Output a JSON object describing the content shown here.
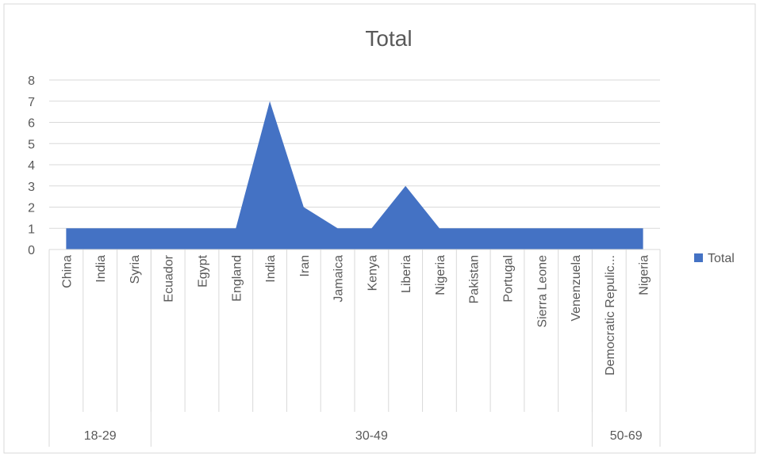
{
  "chart_data": {
    "type": "area",
    "title": "Total",
    "xlabel": "",
    "ylabel": "",
    "ylim": [
      0,
      8
    ],
    "yticks": [
      0,
      1,
      2,
      3,
      4,
      5,
      6,
      7,
      8
    ],
    "grid": true,
    "legend": {
      "position": "right",
      "entries": [
        "Total"
      ]
    },
    "categories": [
      "China",
      "India",
      "Syria",
      "Ecuador",
      "Egypt",
      "England",
      "India",
      "Iran",
      "Jamaica",
      "Kenya",
      "Liberia",
      "Nigeria",
      "Pakistan",
      "Portugal",
      "Sierra Leone",
      "Venenzuela",
      "Democratic Repulic...",
      "Nigeria"
    ],
    "groups": [
      {
        "label": "18-29",
        "span": 3
      },
      {
        "label": "30-49",
        "span": 13
      },
      {
        "label": "50-69",
        "span": 2
      }
    ],
    "series": [
      {
        "name": "Total",
        "values": [
          1,
          1,
          1,
          1,
          1,
          1,
          7,
          2,
          1,
          1,
          3,
          1,
          1,
          1,
          1,
          1,
          1,
          1
        ]
      }
    ],
    "colors": {
      "series": "#4472C4",
      "grid": "#D9D9D9",
      "axis": "#D9D9D9",
      "text": "#595959"
    }
  }
}
